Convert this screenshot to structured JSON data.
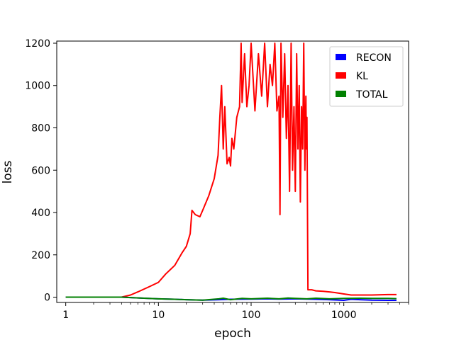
{
  "chart_data": {
    "type": "line",
    "title": "",
    "xlabel": "epoch",
    "ylabel": "loss",
    "xscale": "log",
    "xlim": [
      0.8,
      5000
    ],
    "ylim": [
      -25,
      1210
    ],
    "x_ticks": [
      1,
      10,
      100,
      1000
    ],
    "x_tick_labels": [
      "1",
      "10",
      "100",
      "1000"
    ],
    "y_ticks": [
      0,
      200,
      400,
      600,
      800,
      1000,
      1200
    ],
    "y_tick_labels": [
      "0",
      "200",
      "400",
      "600",
      "800",
      "1000",
      "1200"
    ],
    "legend": {
      "position": "top-right",
      "entries": [
        "RECON",
        "KL",
        "TOTAL"
      ]
    },
    "grid": false,
    "series": [
      {
        "name": "RECON",
        "color": "#0000ff",
        "x": [
          1,
          2,
          3,
          4,
          5,
          7,
          10,
          15,
          20,
          30,
          45,
          60,
          100,
          150,
          200,
          300,
          400,
          500,
          700,
          900,
          1000,
          1200,
          1500,
          2000,
          3000,
          3700
        ],
        "y": [
          0,
          0,
          0,
          0,
          -2,
          -5,
          -8,
          -10,
          -12,
          -14,
          -12,
          -10,
          -9,
          -8,
          -9,
          -8,
          -9,
          -10,
          -12,
          -14,
          -15,
          -10,
          -12,
          -14,
          -15,
          -15
        ]
      },
      {
        "name": "KL",
        "color": "#ff0000",
        "x": [
          1,
          2,
          3,
          4,
          5,
          6,
          8,
          10,
          12,
          15,
          18,
          20,
          22,
          23,
          25,
          28,
          30,
          35,
          40,
          44,
          46,
          48,
          50,
          52,
          55,
          58,
          60,
          62,
          65,
          70,
          75,
          78,
          80,
          85,
          90,
          95,
          100,
          110,
          120,
          130,
          140,
          150,
          160,
          170,
          180,
          190,
          200,
          205,
          210,
          220,
          230,
          240,
          250,
          260,
          270,
          280,
          290,
          300,
          310,
          320,
          330,
          340,
          350,
          360,
          370,
          380,
          390,
          395,
          400,
          410,
          450,
          500,
          600,
          700,
          800,
          1000,
          1200,
          1500,
          2000,
          3000,
          3700
        ],
        "y": [
          0,
          0,
          0,
          0,
          10,
          25,
          50,
          70,
          110,
          150,
          210,
          240,
          300,
          410,
          390,
          380,
          410,
          480,
          560,
          670,
          850,
          1000,
          700,
          900,
          630,
          660,
          620,
          750,
          700,
          850,
          900,
          1200,
          920,
          1150,
          900,
          1000,
          1200,
          880,
          1150,
          950,
          1200,
          900,
          1100,
          1000,
          1200,
          880,
          950,
          390,
          1200,
          850,
          1150,
          750,
          1000,
          500,
          1200,
          600,
          900,
          500,
          1150,
          700,
          1000,
          450,
          900,
          700,
          1200,
          600,
          950,
          700,
          850,
          35,
          35,
          30,
          28,
          25,
          22,
          15,
          10,
          10,
          10,
          12,
          12
        ]
      },
      {
        "name": "TOTAL",
        "color": "#008000",
        "x": [
          1,
          2,
          3,
          4,
          5,
          7,
          10,
          15,
          20,
          30,
          45,
          50,
          60,
          80,
          100,
          150,
          200,
          250,
          300,
          400,
          500,
          700,
          1000,
          1500,
          2000,
          3000,
          3700
        ],
        "y": [
          0,
          0,
          0,
          0,
          -2,
          -5,
          -8,
          -10,
          -12,
          -14,
          -8,
          -5,
          -12,
          -6,
          -8,
          -5,
          -8,
          -4,
          -6,
          -8,
          -5,
          -8,
          -6,
          -5,
          -6,
          -6,
          -7
        ]
      }
    ]
  }
}
